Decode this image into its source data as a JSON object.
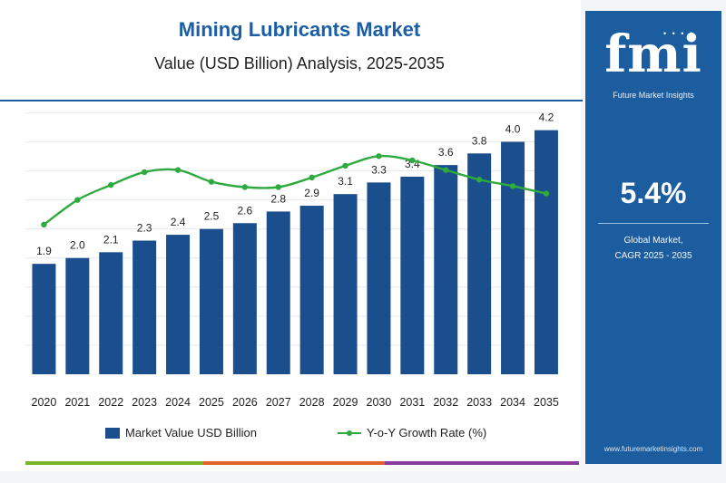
{
  "header": {
    "title": "Mining Lubricants Market",
    "subtitle": "Value (USD Billion) Analysis, 2025-2035"
  },
  "sidebar": {
    "logo_text": "fmi",
    "logo_tagline": "Future Market Insights",
    "cagr_value": "5.4%",
    "cagr_label_line1": "Global Market,",
    "cagr_label_line2": "CAGR 2025 - 2035",
    "footer_url": "www.futuremarketinsights.com"
  },
  "legend": {
    "bar_label": "Market Value USD Billion",
    "line_label": "Y-o-Y Growth Rate (%)"
  },
  "colors": {
    "bar": "#1a4e8c",
    "line": "#2eaa3e",
    "panel": "#1c5d9f",
    "strip": [
      "#76b82a",
      "#e2622b",
      "#8a3fa0"
    ]
  },
  "chart_data": {
    "type": "bar",
    "title": "Mining Lubricants Market",
    "subtitle": "Value (USD Billion) Analysis, 2025-2035",
    "categories": [
      "2020",
      "2021",
      "2022",
      "2023",
      "2024",
      "2025",
      "2026",
      "2027",
      "2028",
      "2029",
      "2030",
      "2031",
      "2032",
      "2033",
      "2034",
      "2035"
    ],
    "series": [
      {
        "name": "Market Value USD Billion",
        "type": "bar",
        "values": [
          1.9,
          2.0,
          2.1,
          2.3,
          2.4,
          2.5,
          2.6,
          2.8,
          2.9,
          3.1,
          3.3,
          3.4,
          3.6,
          3.8,
          4.0,
          4.2
        ],
        "labels": [
          "1.9",
          "2.0",
          "2.1",
          "2.3",
          "2.4",
          "2.5",
          "2.6",
          "2.8",
          "2.9",
          "3.1",
          "3.3",
          "3.4",
          "3.6",
          "3.8",
          "4.0",
          "4.2"
        ]
      },
      {
        "name": "Y-o-Y Growth Rate (%)",
        "type": "line",
        "values": [
          2.5,
          4.8,
          6.2,
          7.4,
          7.6,
          6.5,
          6.0,
          6.0,
          6.9,
          8.0,
          8.9,
          8.5,
          7.6,
          6.7,
          6.1,
          5.4
        ]
      }
    ],
    "ylim": [
      0,
      4.6
    ],
    "y2lim": [
      -11.5,
      13.5
    ],
    "grid": true,
    "legend_position": "bottom"
  }
}
